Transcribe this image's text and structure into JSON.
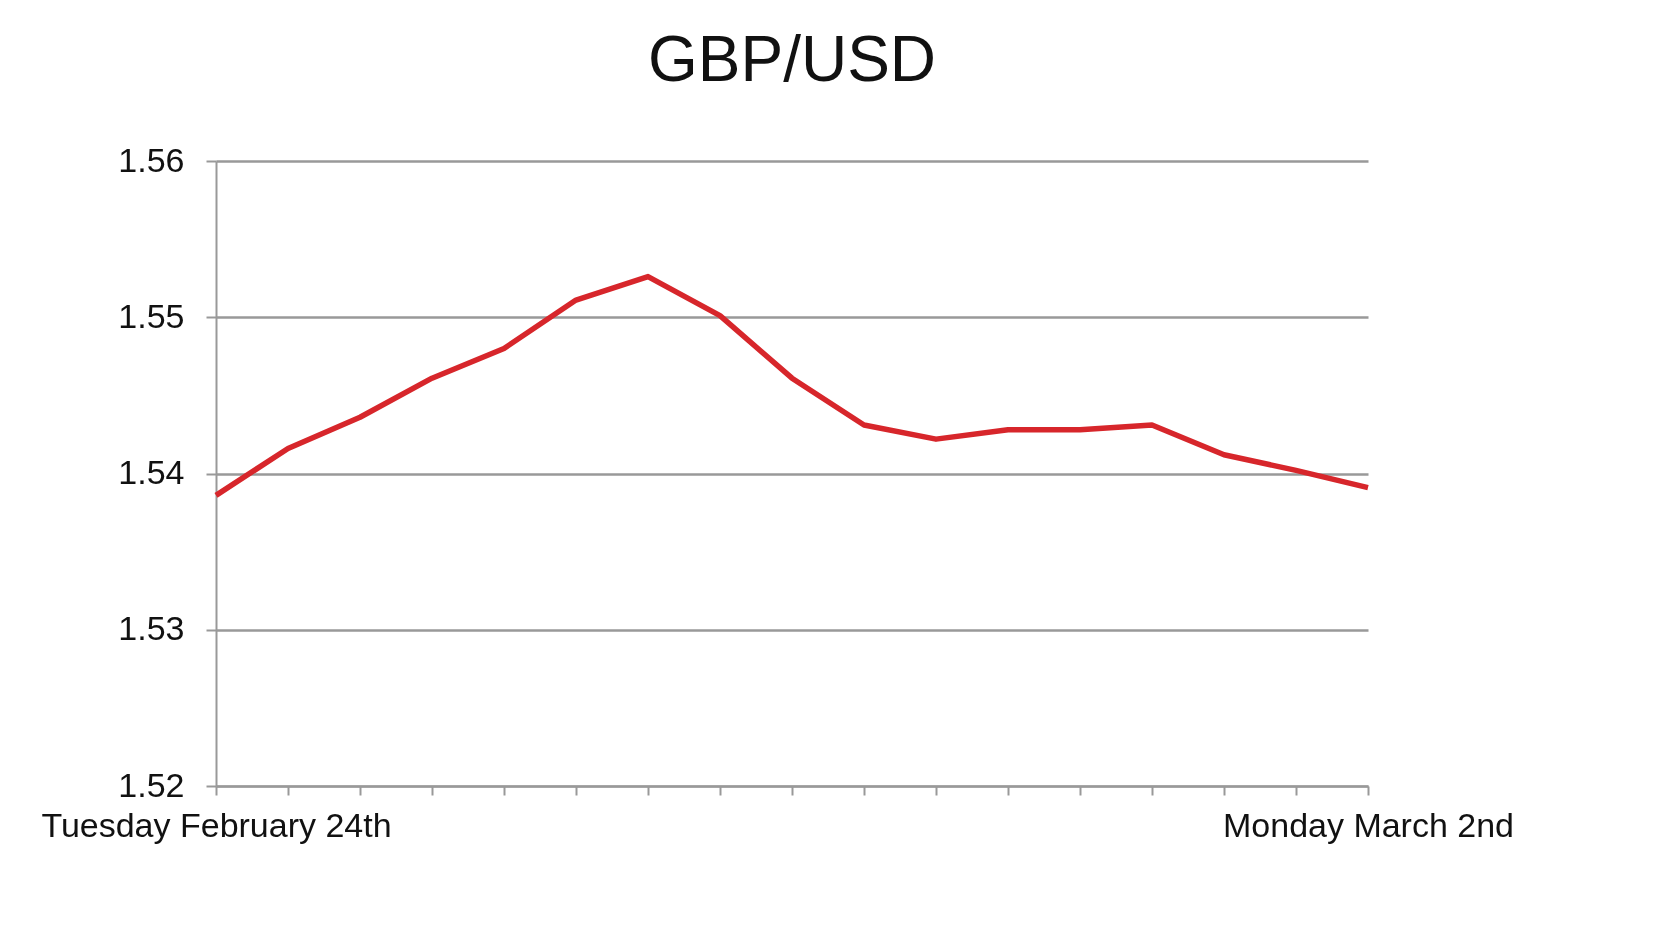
{
  "chart_data": {
    "type": "line",
    "title": "GBP/USD",
    "categories": [
      "Tuesday February 24th",
      null,
      null,
      null,
      null,
      null,
      null,
      null,
      null,
      null,
      null,
      null,
      null,
      null,
      null,
      null,
      "Monday March 2nd"
    ],
    "series": [
      {
        "color": "#d7262b",
        "values": [
          1.5386,
          1.5416,
          1.5436,
          1.5461,
          1.548,
          1.5511,
          1.5526,
          1.5501,
          1.5461,
          1.5431,
          1.5422,
          1.5428,
          1.5428,
          1.5431,
          1.5412,
          1.5402,
          1.5391
        ]
      }
    ],
    "ylim": [
      1.52,
      1.56
    ],
    "yticks": [
      1.52,
      1.53,
      1.54,
      1.55,
      1.56
    ],
    "grid": "y"
  }
}
